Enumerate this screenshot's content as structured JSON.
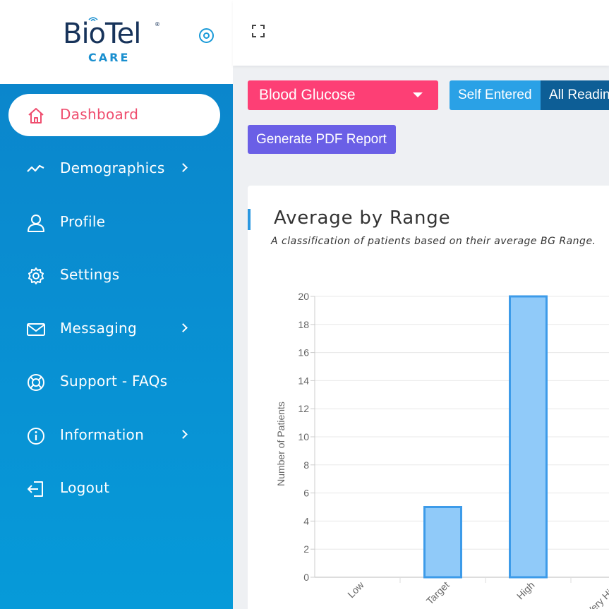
{
  "brand": {
    "name": "BioTel",
    "registered": "®",
    "sub": "CARE"
  },
  "sidebar": {
    "items": [
      {
        "label": "Dashboard",
        "icon": "home-icon",
        "active": true,
        "has_submenu": false
      },
      {
        "label": "Demographics",
        "icon": "trend-line-icon",
        "active": false,
        "has_submenu": true
      },
      {
        "label": "Profile",
        "icon": "user-icon",
        "active": false,
        "has_submenu": false
      },
      {
        "label": "Settings",
        "icon": "gear-icon",
        "active": false,
        "has_submenu": false
      },
      {
        "label": "Messaging",
        "icon": "envelope-icon",
        "active": false,
        "has_submenu": true
      },
      {
        "label": "Support - FAQs",
        "icon": "lifebuoy-icon",
        "active": false,
        "has_submenu": false
      },
      {
        "label": "Information",
        "icon": "info-icon",
        "active": false,
        "has_submenu": true
      },
      {
        "label": "Logout",
        "icon": "logout-icon",
        "active": false,
        "has_submenu": false
      }
    ]
  },
  "controls": {
    "metric_select": "Blood Glucose",
    "source_toggle": [
      {
        "label": "Self Entered",
        "selected": false
      },
      {
        "label": "All Readings",
        "selected": true
      }
    ],
    "pdf_button": "Generate PDF Report"
  },
  "card": {
    "title": "Average by Range",
    "subtitle": "A classification of patients based on their average BG Range."
  },
  "colors": {
    "sidebar": "#0c83ca",
    "active_text": "#ef4d6e",
    "select_bg": "#fd3f75",
    "pdf_bg": "#6a5fe6",
    "bar_fill": "#90caf9",
    "bar_stroke": "#3d9be9"
  },
  "chart_data": {
    "type": "bar",
    "categories": [
      "Low",
      "Target",
      "High",
      "Very High"
    ],
    "values": [
      0,
      5,
      20,
      null
    ],
    "ylabel": "Number of Patients",
    "xlabel": "",
    "ylim": [
      0,
      20
    ],
    "yticks": [
      0,
      2,
      4,
      6,
      8,
      10,
      12,
      14,
      16,
      18,
      20
    ],
    "grid": true
  }
}
